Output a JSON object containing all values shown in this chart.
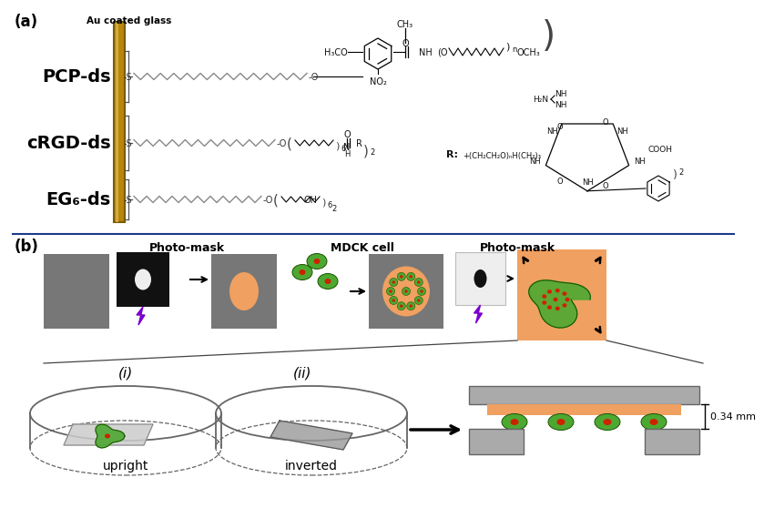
{
  "bg_color": "#ffffff",
  "panel_a_label": "(a)",
  "panel_b_label": "(b)",
  "au_glass_label": "Au coated glass",
  "pcp_label": "PCP-ds",
  "crgd_label": "cRGD-ds",
  "eg6_label": "EG₆-ds",
  "gold_color": "#b8860b",
  "gold_light": "#d4aa40",
  "gray_sq": "#777777",
  "dark_gray": "#444444",
  "chain_color": "#888888",
  "blue_separator": "#1a3a8a",
  "photomask_label1": "Photo-mask",
  "photomask_label2": "Photo-mask",
  "mdck_label": "MDCK cell",
  "upright_label": "upright",
  "inverted_label": "inverted",
  "i_label": "(i)",
  "ii_label": "(ii)",
  "dim_label": "0.34 mm",
  "purple_color": "#7b00cc",
  "orange_color": "#f0a060",
  "green_cell": "#4da832",
  "red_dot": "#cc2200",
  "black_mask": "#111111",
  "white_mask": "#eeeeee",
  "dish_color": "#888888",
  "slide_light": "#cccccc",
  "slide_dark": "#999999",
  "cs_gray": "#aaaaaa"
}
